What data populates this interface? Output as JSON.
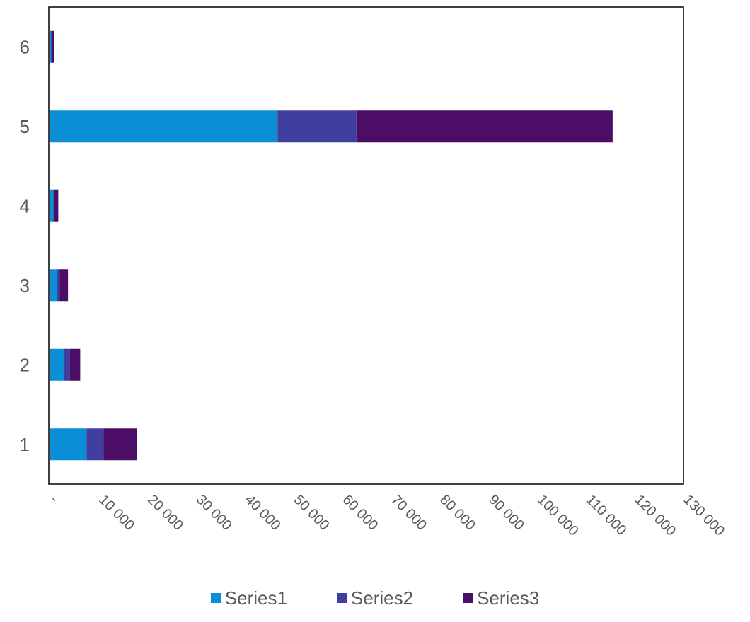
{
  "chart_data": {
    "type": "bar",
    "orientation": "horizontal",
    "stacked": true,
    "categories": [
      "1",
      "2",
      "3",
      "4",
      "5",
      "6"
    ],
    "series": [
      {
        "name": "Series1",
        "color": "#0a8fd6",
        "values": [
          7600,
          2900,
          1500,
          800,
          46800,
          300
        ]
      },
      {
        "name": "Series2",
        "color": "#3f3fa0",
        "values": [
          3500,
          1300,
          600,
          200,
          16200,
          200
        ]
      },
      {
        "name": "Series3",
        "color": "#4b0d65",
        "values": [
          6900,
          2100,
          1700,
          800,
          52600,
          500
        ]
      }
    ],
    "xlim": [
      0,
      130000
    ],
    "x_ticks": [
      "-",
      "10 000",
      "20 000",
      "30 000",
      "40 000",
      "50 000",
      "60 000",
      "70 000",
      "80 000",
      "90 000",
      "100 000",
      "110 000",
      "120 000",
      "130 000"
    ],
    "grid": false,
    "legend_position": "bottom"
  }
}
